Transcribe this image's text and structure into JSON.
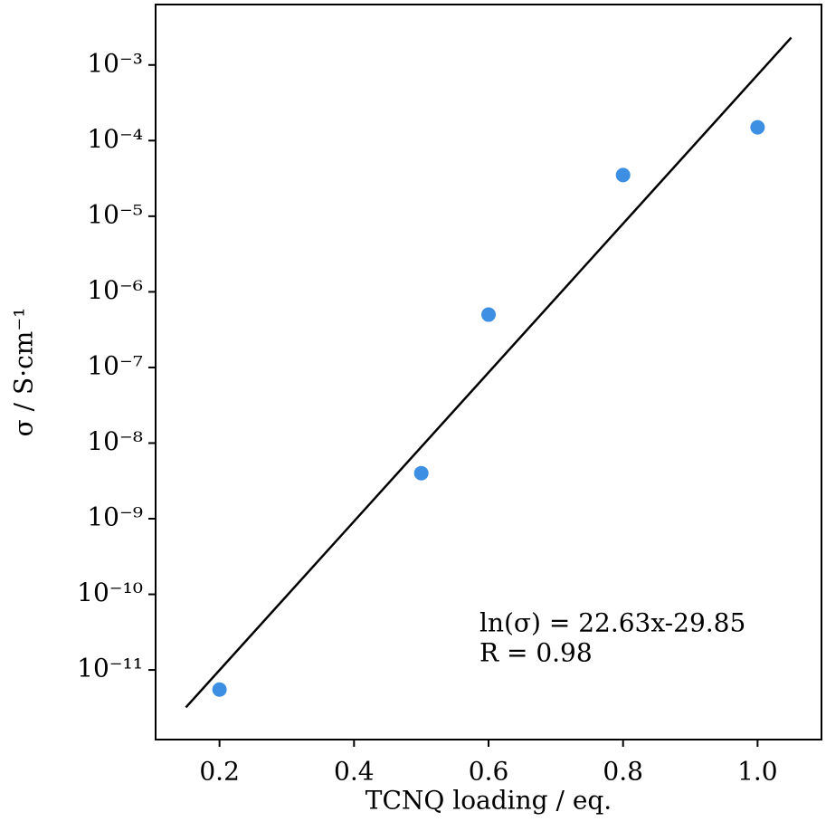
{
  "chart_data": {
    "type": "scatter",
    "x_label": "TCNQ loading / eq.",
    "y_label": "σ / S·cm⁻¹",
    "annotations": [
      "ln(σ) = 22.63x-29.85",
      "R = 0.98"
    ],
    "yscale": "log",
    "xlim": [
      0.105,
      1.095
    ],
    "ylim": [
      1.2e-12,
      0.0063
    ],
    "xticks": [
      0.2,
      0.4,
      0.6,
      0.8,
      {
        "value": 1,
        "label": "1.0"
      }
    ],
    "yticks": [
      {
        "value": 1e-11,
        "label": "10⁻¹¹"
      },
      {
        "value": 1e-10,
        "label": "10⁻¹⁰"
      },
      {
        "value": 1e-09,
        "label": "10⁻⁹"
      },
      {
        "value": 1e-08,
        "label": "10⁻⁸"
      },
      {
        "value": 1e-07,
        "label": "10⁻⁷"
      },
      {
        "value": 1e-06,
        "label": "10⁻⁶"
      },
      {
        "value": 1e-05,
        "label": "10⁻⁵"
      },
      {
        "value": 0.0001,
        "label": "10⁻⁴"
      },
      {
        "value": 0.001,
        "label": "10⁻³"
      }
    ],
    "x": [
      0.2,
      0.5,
      0.6,
      0.8,
      1.0
    ],
    "values": [
      5.5e-12,
      4e-09,
      5e-07,
      3.5e-05,
      0.00015
    ],
    "color": "#3d8fe3",
    "fit_line": {
      "x": [
        0.15,
        1.05
      ],
      "values": [
        3.2e-12,
        0.0023
      ],
      "color": "#000000"
    }
  }
}
